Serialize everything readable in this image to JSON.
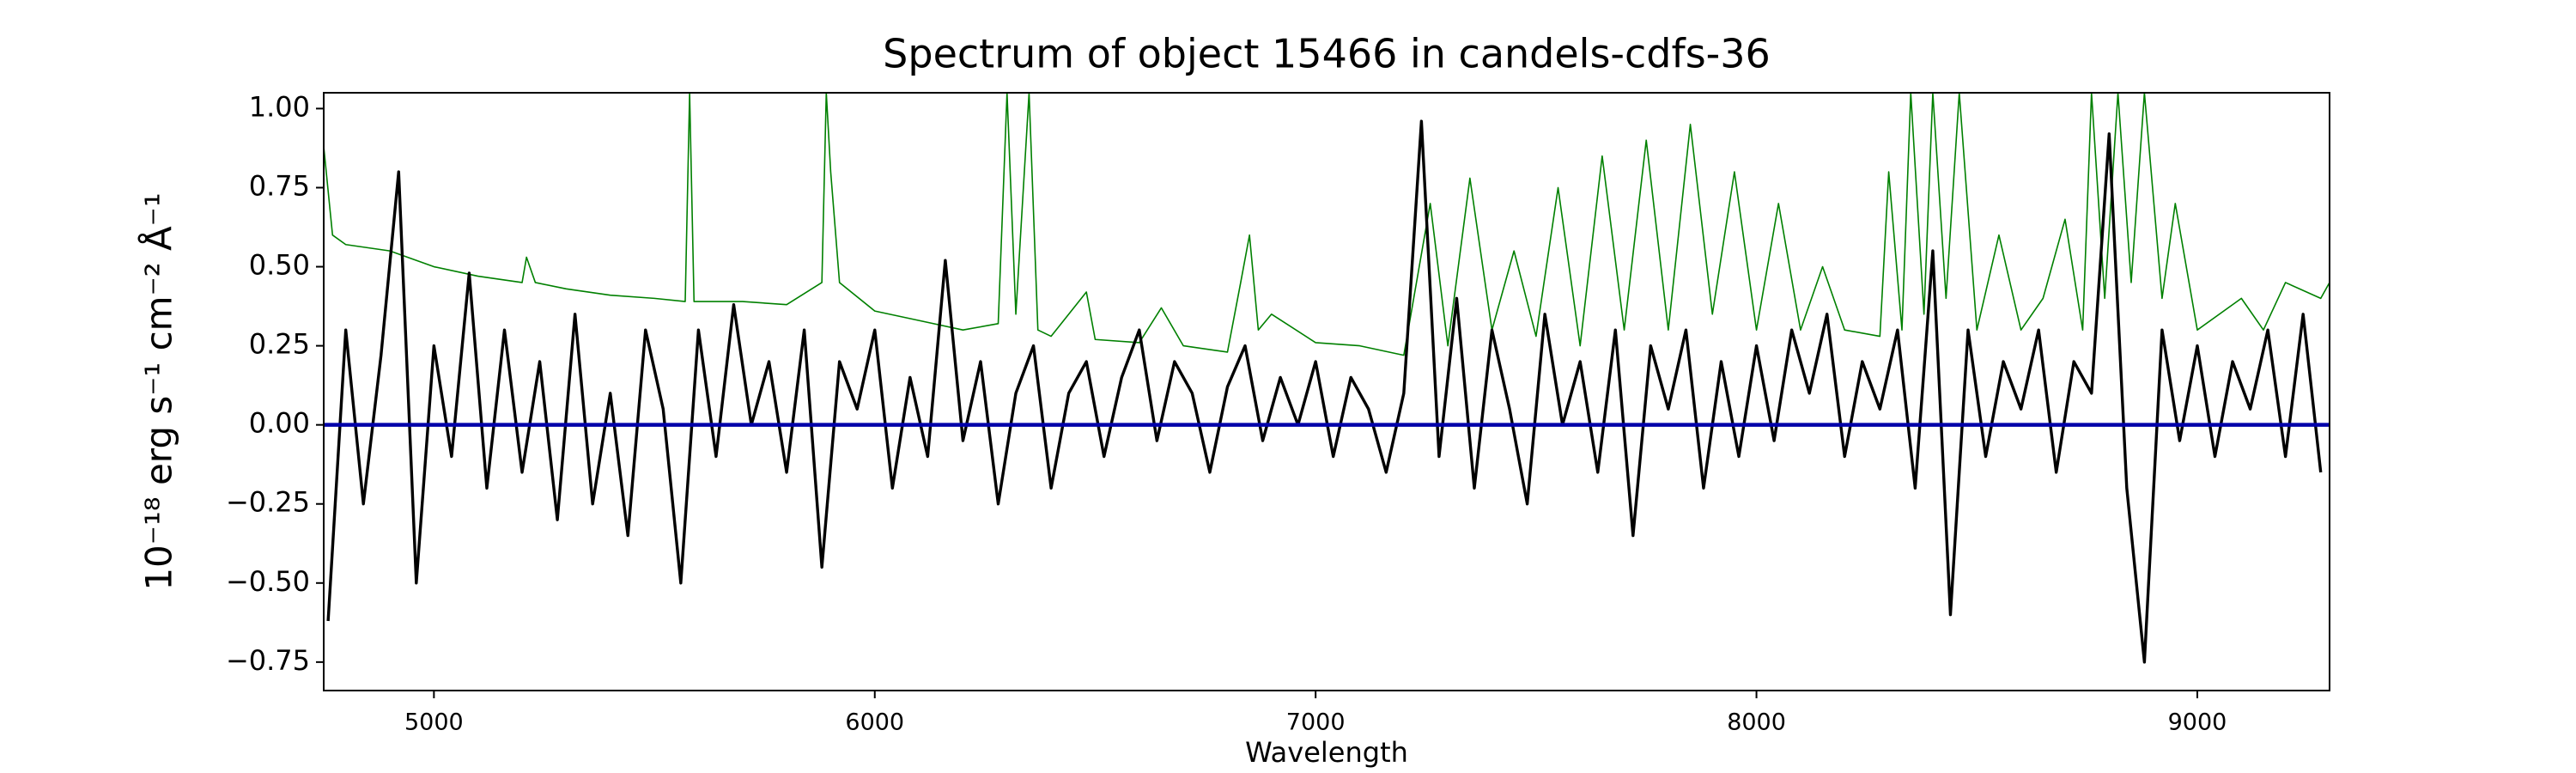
{
  "chart_data": {
    "type": "line",
    "title": "Spectrum of object 15466 in candels-cdfs-36",
    "x_label": "Wavelength",
    "y_label": "10⁻¹⁸ erg s⁻¹ cm⁻² Å⁻¹",
    "xlim": [
      4750,
      9300
    ],
    "ylim": [
      -0.84,
      1.05
    ],
    "xticks": [
      5000,
      6000,
      7000,
      8000,
      9000
    ],
    "yticks": [
      {
        "value": -0.75,
        "label": "−0.75"
      },
      {
        "value": -0.5,
        "label": "−0.50"
      },
      {
        "value": -0.25,
        "label": "−0.25"
      },
      {
        "value": 0,
        "label": "0.00"
      },
      {
        "value": 0.25,
        "label": "0.25"
      },
      {
        "value": 0.5,
        "label": "0.50"
      },
      {
        "value": 0.75,
        "label": "0.75"
      },
      {
        "value": 1,
        "label": "1.00"
      }
    ],
    "grid": false,
    "series": [
      {
        "color": "#008000",
        "x": [
          4750,
          4770,
          4800,
          4900,
          5000,
          5100,
          5200,
          5210,
          5230,
          5300,
          5400,
          5500,
          5570,
          5580,
          5590,
          5700,
          5800,
          5880,
          5890,
          5900,
          5920,
          6000,
          6100,
          6200,
          6280,
          6300,
          6320,
          6350,
          6370,
          6400,
          6480,
          6500,
          6600,
          6650,
          6700,
          6800,
          6830,
          6850,
          6870,
          6900,
          7000,
          7100,
          7200,
          7260,
          7300,
          7350,
          7400,
          7450,
          7500,
          7550,
          7600,
          7650,
          7700,
          7750,
          7800,
          7850,
          7900,
          7950,
          8000,
          8050,
          8100,
          8150,
          8200,
          8280,
          8300,
          8330,
          8350,
          8380,
          8400,
          8430,
          8460,
          8500,
          8550,
          8600,
          8650,
          8700,
          8740,
          8760,
          8790,
          8820,
          8850,
          8880,
          8920,
          8950,
          9000,
          9100,
          9150,
          9200,
          9280,
          9300
        ],
        "values": [
          0.88,
          0.6,
          0.57,
          0.55,
          0.5,
          0.47,
          0.45,
          0.53,
          0.45,
          0.43,
          0.41,
          0.4,
          0.39,
          1.05,
          0.39,
          0.39,
          0.38,
          0.45,
          1.05,
          0.8,
          0.45,
          0.36,
          0.33,
          0.3,
          0.32,
          1.05,
          0.35,
          1.05,
          0.3,
          0.28,
          0.42,
          0.27,
          0.26,
          0.37,
          0.25,
          0.23,
          0.45,
          0.6,
          0.3,
          0.35,
          0.26,
          0.25,
          0.22,
          0.7,
          0.25,
          0.78,
          0.3,
          0.55,
          0.28,
          0.75,
          0.25,
          0.85,
          0.3,
          0.9,
          0.3,
          0.95,
          0.35,
          0.8,
          0.3,
          0.7,
          0.3,
          0.5,
          0.3,
          0.28,
          0.8,
          0.3,
          1.05,
          0.35,
          1.05,
          0.4,
          1.05,
          0.3,
          0.6,
          0.3,
          0.4,
          0.65,
          0.3,
          1.05,
          0.4,
          1.05,
          0.45,
          1.05,
          0.4,
          0.7,
          0.3,
          0.4,
          0.3,
          0.45,
          0.4,
          0.45
        ]
      },
      {
        "color": "#000000",
        "x": [
          4760,
          4800,
          4840,
          4880,
          4920,
          4960,
          5000,
          5040,
          5080,
          5120,
          5160,
          5200,
          5240,
          5280,
          5320,
          5360,
          5400,
          5440,
          5480,
          5520,
          5560,
          5600,
          5640,
          5680,
          5720,
          5760,
          5800,
          5840,
          5880,
          5920,
          5960,
          6000,
          6040,
          6080,
          6120,
          6160,
          6200,
          6240,
          6280,
          6320,
          6360,
          6400,
          6440,
          6480,
          6520,
          6560,
          6600,
          6640,
          6680,
          6720,
          6760,
          6800,
          6840,
          6880,
          6920,
          6960,
          7000,
          7040,
          7080,
          7120,
          7160,
          7200,
          7240,
          7280,
          7320,
          7360,
          7400,
          7440,
          7480,
          7520,
          7560,
          7600,
          7640,
          7680,
          7720,
          7760,
          7800,
          7840,
          7880,
          7920,
          7960,
          8000,
          8040,
          8080,
          8120,
          8160,
          8200,
          8240,
          8280,
          8320,
          8360,
          8400,
          8440,
          8480,
          8520,
          8560,
          8600,
          8640,
          8680,
          8720,
          8760,
          8800,
          8840,
          8880,
          8920,
          8960,
          9000,
          9040,
          9080,
          9120,
          9160,
          9200,
          9240,
          9280
        ],
        "values": [
          -0.62,
          0.3,
          -0.25,
          0.22,
          0.8,
          -0.5,
          0.25,
          -0.1,
          0.48,
          -0.2,
          0.3,
          -0.15,
          0.2,
          -0.3,
          0.35,
          -0.25,
          0.1,
          -0.35,
          0.3,
          0.05,
          -0.5,
          0.3,
          -0.1,
          0.38,
          0,
          0.2,
          -0.15,
          0.3,
          -0.45,
          0.2,
          0.05,
          0.3,
          -0.2,
          0.15,
          -0.1,
          0.52,
          -0.05,
          0.2,
          -0.25,
          0.1,
          0.25,
          -0.2,
          0.1,
          0.2,
          -0.1,
          0.15,
          0.3,
          -0.05,
          0.2,
          0.1,
          -0.15,
          0.12,
          0.25,
          -0.05,
          0.15,
          0,
          0.2,
          -0.1,
          0.15,
          0.05,
          -0.15,
          0.1,
          0.96,
          -0.1,
          0.4,
          -0.2,
          0.3,
          0.05,
          -0.25,
          0.35,
          0,
          0.2,
          -0.15,
          0.3,
          -0.35,
          0.25,
          0.05,
          0.3,
          -0.2,
          0.2,
          -0.1,
          0.25,
          -0.05,
          0.3,
          0.1,
          0.35,
          -0.1,
          0.2,
          0.05,
          0.3,
          -0.2,
          0.55,
          -0.6,
          0.3,
          -0.1,
          0.2,
          0.05,
          0.3,
          -0.15,
          0.2,
          0.1,
          0.92,
          -0.2,
          -0.75,
          0.3,
          -0.05,
          0.25,
          -0.1,
          0.2,
          0.05,
          0.3,
          -0.1,
          0.35,
          -0.15
        ]
      },
      {
        "color": "#0000aa",
        "x": [
          4750,
          9300
        ],
        "values": [
          0,
          0
        ]
      }
    ]
  }
}
